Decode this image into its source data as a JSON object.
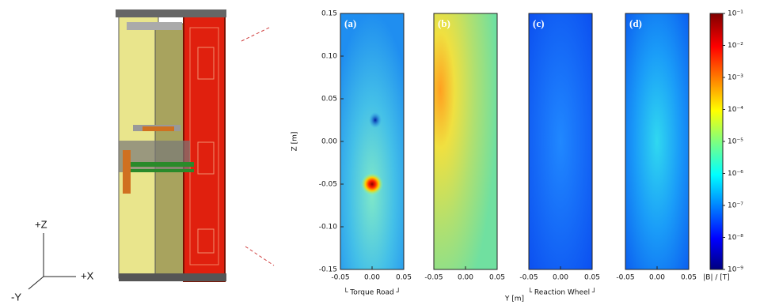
{
  "figure": {
    "xlabel": "Y [m]",
    "group_labels": [
      "└ Torque Road ┘",
      "└ Reaction Wheel ┘"
    ]
  },
  "drawing": {
    "axis_labels": [
      "+Z",
      "+X",
      "-Y"
    ]
  },
  "chart_data": [
    {
      "type": "heatmap",
      "panel_label": "(a)",
      "ylabel": "Z [m]",
      "xlim": [
        -0.05,
        0.05
      ],
      "xticks": [
        -0.05,
        {
          "value": 0,
          "label": "0.00"
        },
        0.05
      ],
      "ylim": [
        -0.15,
        0.15
      ],
      "yticks": [
        -0.15,
        {
          "value": -0.1,
          "label": "-0.10"
        },
        -0.05,
        {
          "value": 0,
          "label": "0.00"
        },
        0.05,
        {
          "value": 0.1,
          "label": "0.10"
        },
        0.15
      ]
    },
    {
      "type": "heatmap",
      "panel_label": "(b)",
      "xlim": [
        -0.05,
        0.05
      ],
      "xticks": [
        -0.05,
        {
          "value": 0,
          "label": "0.00"
        },
        0.05
      ],
      "ylim": [
        -0.15,
        0.15
      ]
    },
    {
      "type": "heatmap",
      "panel_label": "(c)",
      "xlim": [
        -0.05,
        0.05
      ],
      "xticks": [
        -0.05,
        {
          "value": 0,
          "label": "0.00"
        },
        0.05
      ],
      "ylim": [
        -0.15,
        0.15
      ]
    },
    {
      "type": "heatmap",
      "panel_label": "(d)",
      "xlim": [
        -0.05,
        0.05
      ],
      "xticks": [
        -0.05,
        {
          "value": 0,
          "label": "0.00"
        },
        0.05
      ],
      "ylim": [
        -0.15,
        0.15
      ]
    },
    {
      "type": "colorbar",
      "label": "|B| / [T]",
      "log_scale": true,
      "ylim": [
        1e-09,
        0.1
      ],
      "yticks": [
        {
          "value": 1e-09,
          "label": "10⁻⁹"
        },
        {
          "value": 1e-08,
          "label": "10⁻⁸"
        },
        {
          "value": 1e-07,
          "label": "10⁻⁷"
        },
        {
          "value": 1e-06,
          "label": "10⁻⁶"
        },
        {
          "value": 1e-05,
          "label": "10⁻⁵"
        },
        {
          "value": 0.0001,
          "label": "10⁻⁴"
        },
        {
          "value": 0.001,
          "label": "10⁻³"
        },
        {
          "value": 0.01,
          "label": "10⁻²"
        },
        {
          "value": 0.1,
          "label": "10⁻¹"
        }
      ]
    }
  ]
}
